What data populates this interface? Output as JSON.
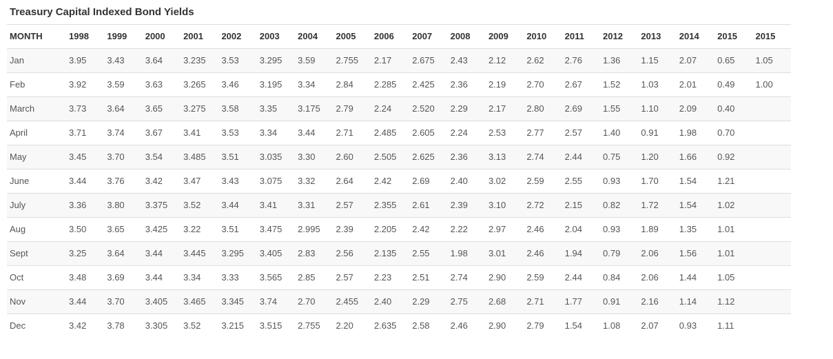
{
  "colors": {
    "title_text": "#333333",
    "header_text": "#333333",
    "cell_text": "#555555",
    "border": "#dddddd",
    "row_stripe": "#f8f8f8",
    "background": "#ffffff"
  },
  "chart_data": {
    "type": "table",
    "title": "Treasury Capital Indexed Bond Yields",
    "columns": [
      "MONTH",
      "1998",
      "1999",
      "2000",
      "2001",
      "2002",
      "2003",
      "2004",
      "2005",
      "2006",
      "2007",
      "2008",
      "2009",
      "2010",
      "2011",
      "2012",
      "2013",
      "2014",
      "2015",
      "2015"
    ],
    "rows": [
      {
        "month": "Jan",
        "values": [
          "3.95",
          "3.43",
          "3.64",
          "3.235",
          "3.53",
          "3.295",
          "3.59",
          "2.755",
          "2.17",
          "2.675",
          "2.43",
          "2.12",
          "2.62",
          "2.76",
          "1.36",
          "1.15",
          "2.07",
          "0.65",
          "1.05"
        ]
      },
      {
        "month": "Feb",
        "values": [
          "3.92",
          "3.59",
          "3.63",
          "3.265",
          "3.46",
          "3.195",
          "3.34",
          "2.84",
          "2.285",
          "2.425",
          "2.36",
          "2.19",
          "2.70",
          "2.67",
          "1.52",
          "1.03",
          "2.01",
          "0.49",
          "1.00"
        ]
      },
      {
        "month": "March",
        "values": [
          "3.73",
          "3.64",
          "3.65",
          "3.275",
          "3.58",
          "3.35",
          "3.175",
          "2.79",
          "2.24",
          "2.520",
          "2.29",
          "2.17",
          "2.80",
          "2.69",
          "1.55",
          "1.10",
          "2.09",
          "0.40",
          ""
        ]
      },
      {
        "month": "April",
        "values": [
          "3.71",
          "3.74",
          "3.67",
          "3.41",
          "3.53",
          "3.34",
          "3.44",
          "2.71",
          "2.485",
          "2.605",
          "2.24",
          "2.53",
          "2.77",
          "2.57",
          "1.40",
          "0.91",
          "1.98",
          "0.70",
          ""
        ]
      },
      {
        "month": "May",
        "values": [
          "3.45",
          "3.70",
          "3.54",
          "3.485",
          "3.51",
          "3.035",
          "3.30",
          "2.60",
          "2.505",
          "2.625",
          "2.36",
          "3.13",
          "2.74",
          "2.44",
          "0.75",
          "1.20",
          "1.66",
          "0.92",
          ""
        ]
      },
      {
        "month": "June",
        "values": [
          "3.44",
          "3.76",
          "3.42",
          "3.47",
          "3.43",
          "3.075",
          "3.32",
          "2.64",
          "2.42",
          "2.69",
          "2.40",
          "3.02",
          "2.59",
          "2.55",
          "0.93",
          "1.70",
          "1.54",
          "1.21",
          ""
        ]
      },
      {
        "month": "July",
        "values": [
          "3.36",
          "3.80",
          "3.375",
          "3.52",
          "3.44",
          "3.41",
          "3.31",
          "2.57",
          "2.355",
          "2.61",
          "2.39",
          "3.10",
          "2.72",
          "2.15",
          "0.82",
          "1.72",
          "1.54",
          "1.02",
          ""
        ]
      },
      {
        "month": "Aug",
        "values": [
          "3.50",
          "3.65",
          "3.425",
          "3.22",
          "3.51",
          "3.475",
          "2.995",
          "2.39",
          "2.205",
          "2.42",
          "2.22",
          "2.97",
          "2.46",
          "2.04",
          "0.93",
          "1.89",
          "1.35",
          "1.01",
          ""
        ]
      },
      {
        "month": "Sept",
        "values": [
          "3.25",
          "3.64",
          "3.44",
          "3.445",
          "3.295",
          "3.405",
          "2.83",
          "2.56",
          "2.135",
          "2.55",
          "1.98",
          "3.01",
          "2.46",
          "1.94",
          "0.79",
          "2.06",
          "1.56",
          "1.01",
          ""
        ]
      },
      {
        "month": "Oct",
        "values": [
          "3.48",
          "3.69",
          "3.44",
          "3.34",
          "3.33",
          "3.565",
          "2.85",
          "2.57",
          "2.23",
          "2.51",
          "2.74",
          "2.90",
          "2.59",
          "2.44",
          "0.84",
          "2.06",
          "1.44",
          "1.05",
          ""
        ]
      },
      {
        "month": "Nov",
        "values": [
          "3.44",
          "3.70",
          "3.405",
          "3.465",
          "3.345",
          "3.74",
          "2.70",
          "2.455",
          "2.40",
          "2.29",
          "2.75",
          "2.68",
          "2.71",
          "1.77",
          "0.91",
          "2.16",
          "1.14",
          "1.12",
          ""
        ]
      },
      {
        "month": "Dec",
        "values": [
          "3.42",
          "3.78",
          "3.305",
          "3.52",
          "3.215",
          "3.515",
          "2.755",
          "2.20",
          "2.635",
          "2.58",
          "2.46",
          "2.90",
          "2.79",
          "1.54",
          "1.08",
          "2.07",
          "0.93",
          "1.11",
          ""
        ]
      }
    ]
  }
}
